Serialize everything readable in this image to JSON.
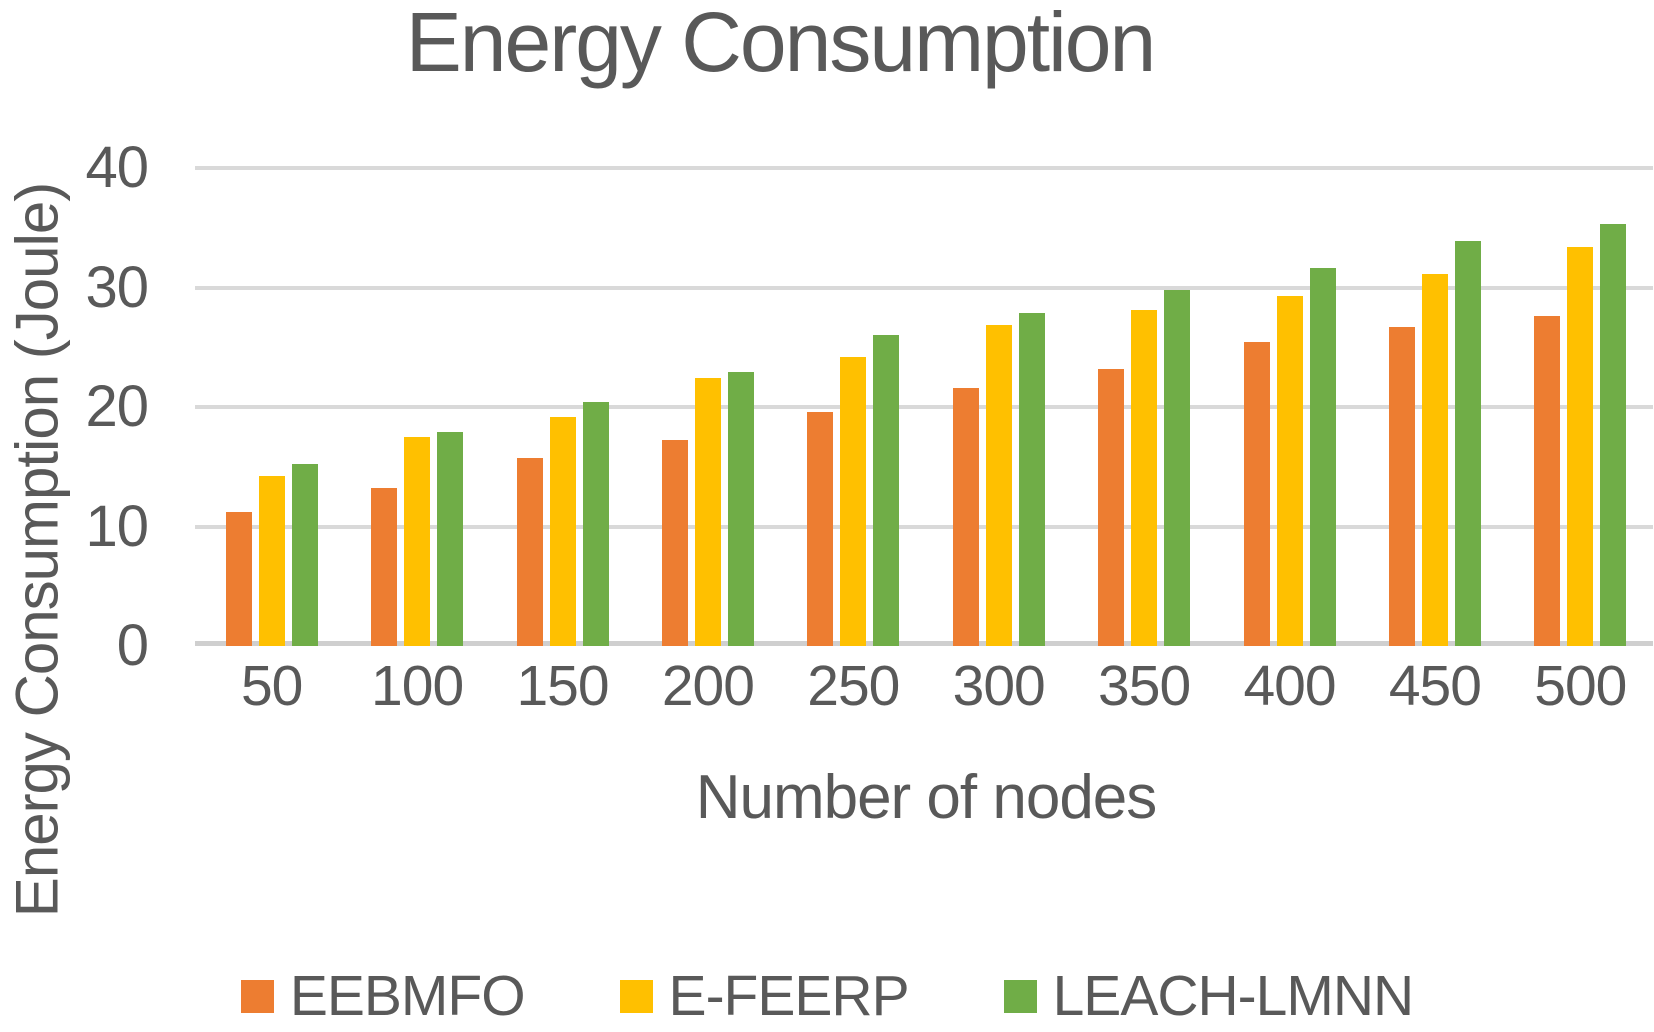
{
  "title": "Energy Consumption",
  "y_axis_title": "Energy Consumption (Joule)",
  "x_axis_title": "Number of nodes",
  "colors": {
    "eebmfo": "#ED7D31",
    "e_feerp": "#FFC000",
    "leach_lmnn": "#70AD47",
    "text": "#595959",
    "gridline": "#D9D9D9",
    "axis_line": "#CFCFCF"
  },
  "chart_data": {
    "type": "bar",
    "title": "Energy Consumption",
    "xlabel": "Number of nodes",
    "ylabel": "Energy Consumption (Joule)",
    "categories": [
      "50",
      "100",
      "150",
      "200",
      "250",
      "300",
      "350",
      "400",
      "450",
      "500"
    ],
    "series": [
      {
        "name": "EEBMFO",
        "color": "#ED7D31",
        "values": [
          11.2,
          13.2,
          15.7,
          17.2,
          19.6,
          21.6,
          23.2,
          25.4,
          26.7,
          27.6
        ]
      },
      {
        "name": "E-FEERP",
        "color": "#FFC000",
        "values": [
          14.2,
          17.5,
          19.2,
          22.4,
          24.2,
          26.9,
          28.1,
          29.3,
          31.1,
          33.4
        ]
      },
      {
        "name": "LEACH-LMNN",
        "color": "#70AD47",
        "values": [
          15.2,
          17.9,
          20.4,
          22.9,
          26.0,
          27.9,
          29.8,
          31.6,
          33.9,
          35.3
        ]
      }
    ],
    "ylim": [
      0,
      40
    ],
    "y_ticks": [
      0,
      10,
      20,
      30,
      40
    ],
    "grid": true,
    "legend_position": "bottom"
  }
}
